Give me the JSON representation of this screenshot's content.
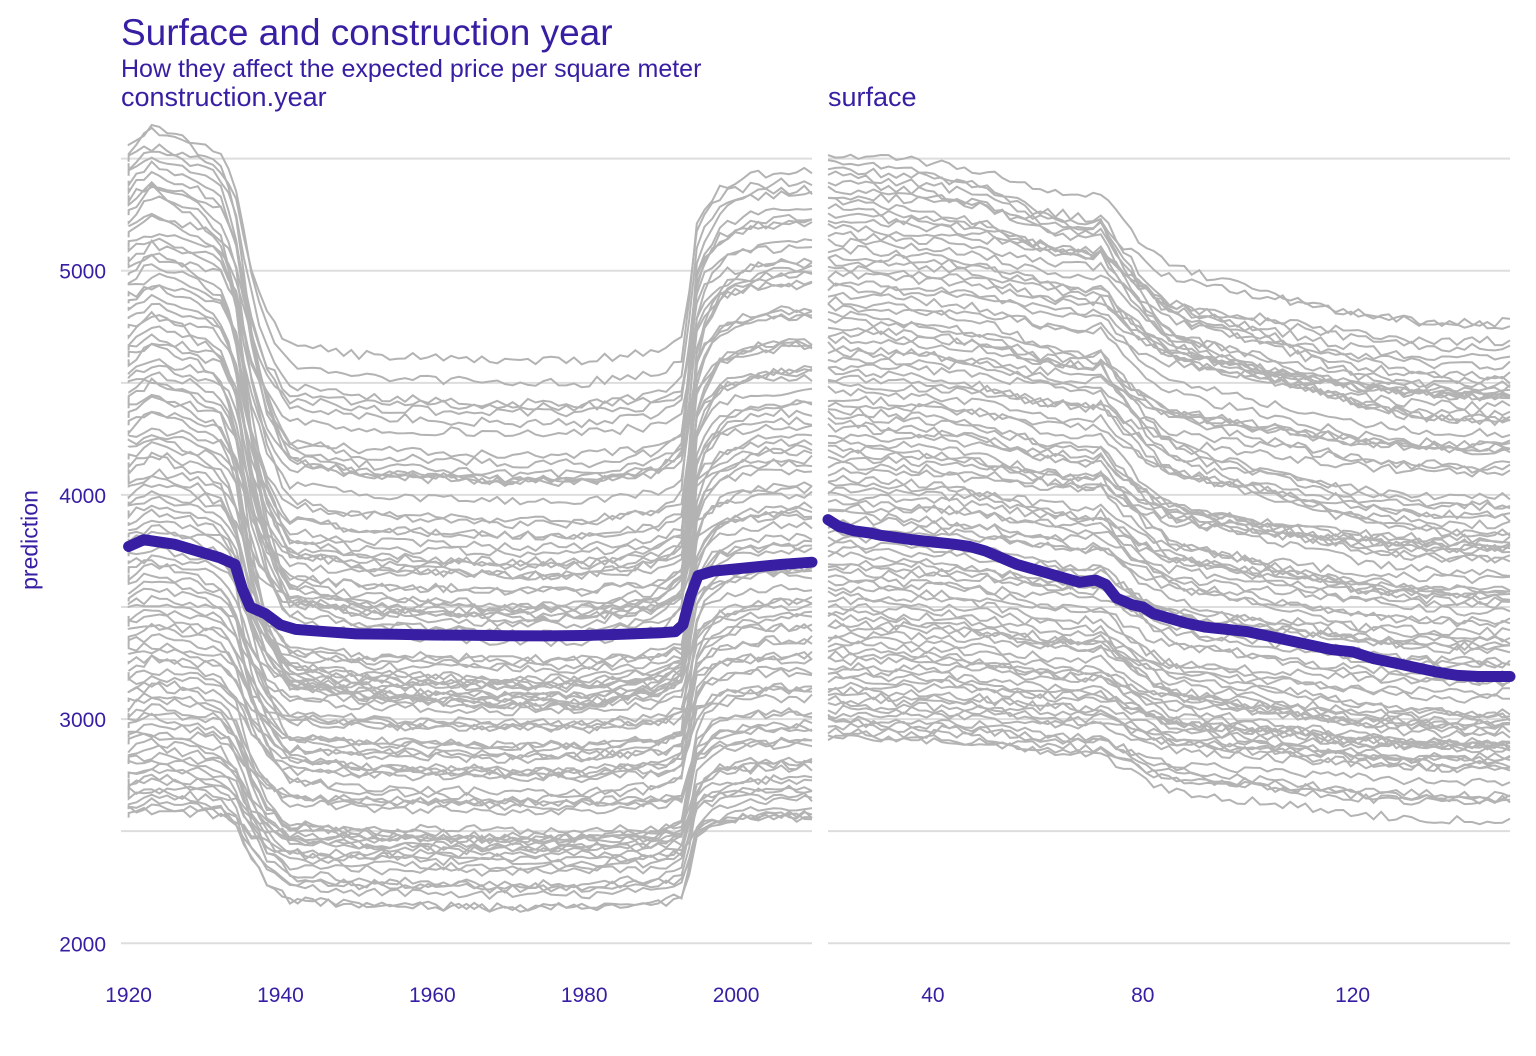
{
  "title": "Surface and construction year",
  "subtitle": "How they affect the expected price per square meter",
  "ylabel": "prediction",
  "colors": {
    "text": "#371ea3",
    "ice_line": "#b3b3b3",
    "pdp_line": "#371ea3",
    "grid": "#dddddd"
  },
  "chart_data": [
    {
      "type": "line",
      "panel": "construction.year",
      "xlabel": "",
      "ylabel": "prediction",
      "xlim": [
        1919,
        2010
      ],
      "ylim": [
        1970,
        5650
      ],
      "x_ticks": [
        1920,
        1940,
        1960,
        1980,
        2000
      ],
      "y_ticks": [
        2000,
        3000,
        4000,
        5000
      ],
      "grid": true,
      "legend": "none",
      "ice_profiles": {
        "count": 100,
        "anchor_x": [
          1920,
          1923,
          1926,
          1929,
          1932,
          1934,
          1936,
          1938,
          1941,
          1945,
          1950,
          1960,
          1970,
          1980,
          1990,
          1993,
          1995,
          1998,
          2002,
          2006,
          2010
        ],
        "shape": [
          0.0,
          0.04,
          0.02,
          0.0,
          -0.03,
          -0.12,
          -0.35,
          -0.5,
          -0.62,
          -0.63,
          -0.65,
          -0.66,
          -0.67,
          -0.67,
          -0.64,
          -0.6,
          -0.2,
          -0.12,
          -0.09,
          -0.08,
          -0.08
        ],
        "start_range": [
          2580,
          5570
        ]
      },
      "series": [
        {
          "role": "pdp",
          "x": [
            1920,
            1922,
            1924,
            1926,
            1928,
            1930,
            1932,
            1934,
            1935,
            1936,
            1938,
            1940,
            1942,
            1946,
            1950,
            1955,
            1960,
            1965,
            1970,
            1975,
            1980,
            1985,
            1990,
            1992,
            1993,
            1994,
            1995,
            1997,
            2000,
            2003,
            2006,
            2010
          ],
          "values": [
            3770,
            3800,
            3790,
            3780,
            3760,
            3740,
            3720,
            3690,
            3580,
            3500,
            3470,
            3420,
            3400,
            3390,
            3380,
            3378,
            3375,
            3374,
            3372,
            3371,
            3373,
            3378,
            3385,
            3390,
            3420,
            3550,
            3640,
            3660,
            3670,
            3680,
            3690,
            3700
          ]
        }
      ]
    },
    {
      "type": "line",
      "panel": "surface",
      "xlabel": "",
      "ylabel": "prediction",
      "xlim": [
        20,
        150
      ],
      "ylim": [
        1970,
        5650
      ],
      "x_ticks": [
        40,
        80,
        120
      ],
      "y_ticks": [
        2000,
        3000,
        4000,
        5000
      ],
      "grid": true,
      "legend": "none",
      "ice_profiles": {
        "count": 100,
        "anchor_x": [
          20,
          30,
          40,
          45,
          50,
          55,
          60,
          65,
          70,
          72,
          75,
          80,
          85,
          90,
          100,
          110,
          120,
          130,
          140,
          150
        ],
        "shape": [
          0.0,
          -0.01,
          -0.02,
          -0.03,
          -0.04,
          -0.06,
          -0.08,
          -0.09,
          -0.1,
          -0.09,
          -0.14,
          -0.21,
          -0.26,
          -0.28,
          -0.31,
          -0.34,
          -0.37,
          -0.39,
          -0.4,
          -0.4
        ],
        "start_range": [
          2920,
          5520
        ]
      },
      "series": [
        {
          "role": "pdp",
          "x": [
            20,
            22,
            25,
            28,
            30,
            33,
            36,
            40,
            44,
            47,
            50,
            53,
            56,
            59,
            62,
            65,
            68,
            71,
            73,
            75,
            78,
            80,
            82,
            85,
            88,
            92,
            96,
            100,
            104,
            108,
            112,
            116,
            120,
            124,
            128,
            132,
            136,
            140,
            144,
            147,
            150
          ],
          "values": [
            3890,
            3860,
            3840,
            3830,
            3820,
            3810,
            3800,
            3790,
            3780,
            3770,
            3750,
            3720,
            3690,
            3670,
            3650,
            3630,
            3610,
            3620,
            3600,
            3540,
            3510,
            3500,
            3470,
            3450,
            3430,
            3410,
            3400,
            3390,
            3370,
            3350,
            3330,
            3310,
            3300,
            3270,
            3250,
            3230,
            3210,
            3195,
            3190,
            3190,
            3190
          ]
        }
      ]
    }
  ]
}
